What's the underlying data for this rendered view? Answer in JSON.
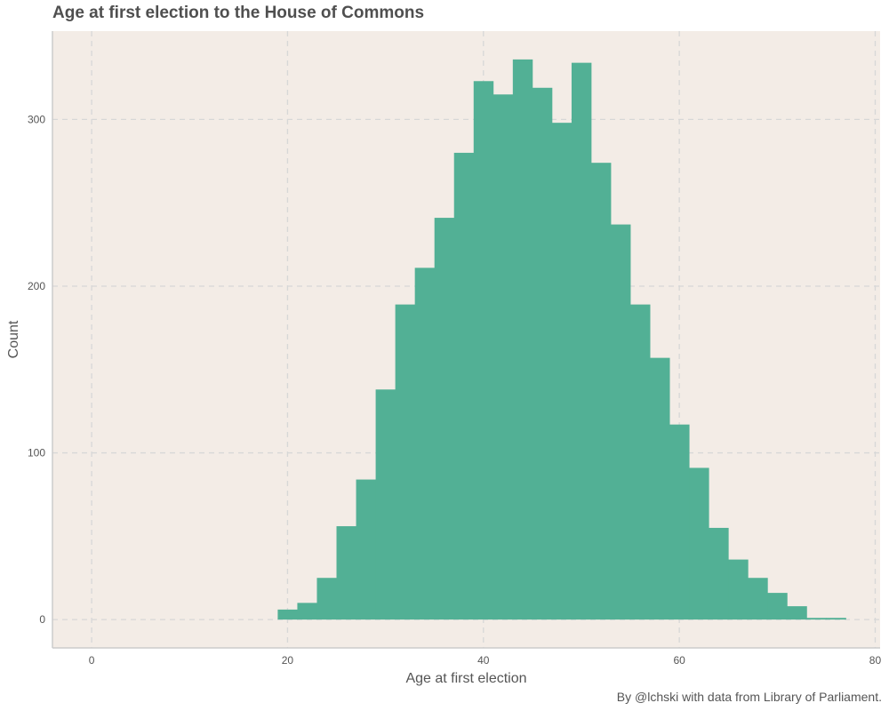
{
  "title": "Age at first election to the House of Commons",
  "caption": "By @lchski with data from Library of Parliament.",
  "colors": {
    "panel": "#f3ece6",
    "bar": "#52b095",
    "grid": "#d7d7d7",
    "axis": "#cccccc"
  },
  "chart_data": {
    "type": "bar",
    "title": "Age at first election to the House of Commons",
    "xlabel": "Age at first election",
    "ylabel": "Count",
    "xlim": [
      -4,
      80.5
    ],
    "ylim": [
      -17,
      353
    ],
    "x_ticks": [
      0,
      20,
      40,
      60,
      80
    ],
    "y_ticks": [
      0,
      100,
      200,
      300
    ],
    "grid": true,
    "grid_style": "dashed",
    "bin_width": 2,
    "bins": [
      {
        "start": 19,
        "end": 21,
        "count": 6
      },
      {
        "start": 21,
        "end": 23,
        "count": 10
      },
      {
        "start": 23,
        "end": 25,
        "count": 25
      },
      {
        "start": 25,
        "end": 27,
        "count": 56
      },
      {
        "start": 27,
        "end": 29,
        "count": 84
      },
      {
        "start": 29,
        "end": 31,
        "count": 138
      },
      {
        "start": 31,
        "end": 33,
        "count": 189
      },
      {
        "start": 33,
        "end": 35,
        "count": 211
      },
      {
        "start": 35,
        "end": 37,
        "count": 241
      },
      {
        "start": 37,
        "end": 39,
        "count": 280
      },
      {
        "start": 39,
        "end": 41,
        "count": 323
      },
      {
        "start": 41,
        "end": 43,
        "count": 315
      },
      {
        "start": 43,
        "end": 45,
        "count": 336
      },
      {
        "start": 45,
        "end": 47,
        "count": 319
      },
      {
        "start": 47,
        "end": 49,
        "count": 298
      },
      {
        "start": 49,
        "end": 51,
        "count": 334
      },
      {
        "start": 51,
        "end": 53,
        "count": 274
      },
      {
        "start": 53,
        "end": 55,
        "count": 237
      },
      {
        "start": 55,
        "end": 57,
        "count": 189
      },
      {
        "start": 57,
        "end": 59,
        "count": 157
      },
      {
        "start": 59,
        "end": 61,
        "count": 117
      },
      {
        "start": 61,
        "end": 63,
        "count": 91
      },
      {
        "start": 63,
        "end": 65,
        "count": 55
      },
      {
        "start": 65,
        "end": 67,
        "count": 36
      },
      {
        "start": 67,
        "end": 69,
        "count": 25
      },
      {
        "start": 69,
        "end": 71,
        "count": 16
      },
      {
        "start": 71,
        "end": 73,
        "count": 8
      },
      {
        "start": 73,
        "end": 75,
        "count": 1
      },
      {
        "start": 75,
        "end": 77,
        "count": 1
      }
    ]
  }
}
